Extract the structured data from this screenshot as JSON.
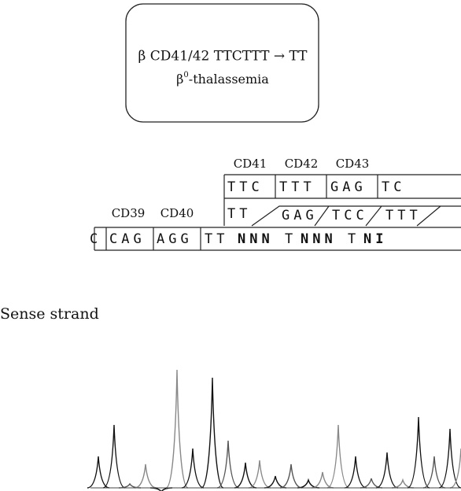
{
  "box": {
    "line1": "β CD41/42 TTCTTT → TT",
    "line2": [
      "β",
      "0",
      "-thalassemia"
    ]
  },
  "codon_labels": {
    "top": [
      "CD41",
      "CD42",
      "CD43"
    ],
    "bottom": [
      "CD39",
      "CD40"
    ]
  },
  "rows": {
    "normal": [
      "TTC",
      "TTT",
      "GAG",
      "TC"
    ],
    "mutant": [
      "TT",
      "GAG",
      "TCC",
      "TTT"
    ],
    "read": [
      "C",
      "CAG",
      "AGG",
      "TT",
      "NNN",
      "T",
      "NNN",
      "T",
      "NI"
    ]
  },
  "strand_label": "Sense strand"
}
